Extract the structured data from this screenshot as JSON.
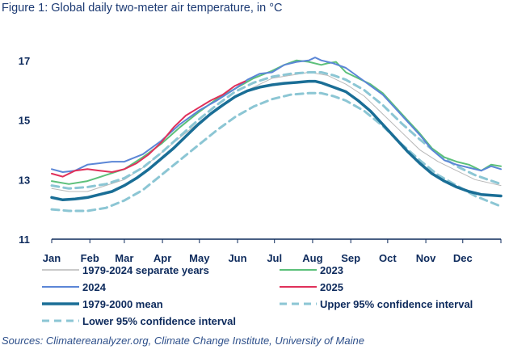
{
  "chart_data": {
    "type": "line",
    "title": "Figure 1: Global daily two-meter air temperature, in °C",
    "source": "Sources: Climatereanalyzer.org, Climate Change Institute, University of Maine",
    "ylim": [
      11,
      17.4
    ],
    "yticks": [
      11,
      13,
      15,
      17
    ],
    "xlim": [
      1,
      366
    ],
    "x_tick_labels": [
      "Jan",
      "Feb",
      "Mar",
      "Apr",
      "May",
      "Jun",
      "Jul",
      "Aug",
      "Sep",
      "Oct",
      "Nov",
      "Dec"
    ],
    "x_tick_days": [
      1,
      32,
      60,
      91,
      121,
      152,
      182,
      213,
      244,
      274,
      305,
      335
    ],
    "grid": false,
    "legend_position": "bottom",
    "colors": {
      "separate_years": "#b8b8b8",
      "y2023": "#5cc07a",
      "y2024": "#5b86d6",
      "y2025": "#e0305a",
      "mean": "#1a6e96",
      "ci": "#8cc6d4",
      "axis": "#0d2a5c"
    },
    "series": [
      {
        "name": "1979-2024 separate years",
        "x": [
          1,
          15,
          30,
          45,
          60,
          75,
          90,
          105,
          120,
          135,
          150,
          165,
          180,
          195,
          210,
          225,
          240,
          255,
          270,
          285,
          300,
          315,
          330,
          345,
          366
        ],
        "y": [
          12.7,
          12.6,
          12.6,
          12.8,
          13.0,
          13.4,
          13.9,
          14.4,
          14.9,
          15.4,
          15.8,
          16.1,
          16.4,
          16.5,
          16.6,
          16.5,
          16.2,
          15.8,
          15.2,
          14.6,
          14.0,
          13.6,
          13.3,
          13.0,
          12.8
        ]
      },
      {
        "name": "2023",
        "x": [
          1,
          15,
          30,
          45,
          60,
          75,
          90,
          105,
          120,
          135,
          150,
          165,
          180,
          190,
          200,
          210,
          220,
          225,
          232,
          240,
          250,
          260,
          270,
          280,
          290,
          300,
          310,
          320,
          330,
          340,
          350,
          358,
          366
        ],
        "y": [
          12.95,
          12.85,
          12.95,
          13.15,
          13.35,
          13.75,
          14.2,
          14.75,
          15.25,
          15.7,
          16.05,
          16.4,
          16.65,
          16.85,
          17.0,
          16.95,
          16.85,
          16.9,
          16.95,
          16.6,
          16.4,
          16.2,
          15.9,
          15.45,
          15.0,
          14.55,
          14.05,
          13.75,
          13.6,
          13.5,
          13.3,
          13.5,
          13.45
        ]
      },
      {
        "name": "2024",
        "x": [
          1,
          10,
          20,
          30,
          40,
          50,
          60,
          75,
          90,
          105,
          120,
          135,
          150,
          160,
          170,
          180,
          190,
          200,
          210,
          215,
          220,
          230,
          240,
          250,
          260,
          270,
          280,
          290,
          300,
          310,
          320,
          330,
          340,
          350,
          358,
          366
        ],
        "y": [
          13.35,
          13.25,
          13.3,
          13.5,
          13.55,
          13.6,
          13.6,
          13.85,
          14.3,
          14.85,
          15.3,
          15.65,
          16.05,
          16.35,
          16.55,
          16.6,
          16.85,
          16.95,
          17.0,
          17.1,
          17.0,
          16.9,
          16.75,
          16.45,
          16.15,
          15.85,
          15.4,
          14.95,
          14.5,
          14.0,
          13.65,
          13.5,
          13.4,
          13.3,
          13.45,
          13.35
        ]
      },
      {
        "name": "2025",
        "x": [
          1,
          10,
          20,
          30,
          40,
          50,
          60,
          70,
          80,
          90,
          100,
          110,
          120,
          130,
          140,
          150,
          158
        ],
        "y": [
          13.2,
          13.1,
          13.3,
          13.35,
          13.3,
          13.25,
          13.35,
          13.55,
          13.85,
          14.25,
          14.75,
          15.15,
          15.4,
          15.65,
          15.85,
          16.15,
          16.3
        ]
      },
      {
        "name": "1979-2000 mean",
        "x": [
          1,
          10,
          20,
          30,
          40,
          50,
          60,
          70,
          80,
          90,
          100,
          110,
          120,
          130,
          140,
          150,
          160,
          170,
          180,
          190,
          200,
          210,
          215,
          220,
          230,
          240,
          250,
          260,
          270,
          280,
          290,
          300,
          310,
          320,
          330,
          340,
          350,
          366
        ],
        "y": [
          12.4,
          12.32,
          12.35,
          12.4,
          12.5,
          12.6,
          12.8,
          13.05,
          13.35,
          13.7,
          14.05,
          14.45,
          14.85,
          15.2,
          15.5,
          15.78,
          15.98,
          16.1,
          16.18,
          16.23,
          16.26,
          16.3,
          16.3,
          16.25,
          16.1,
          15.95,
          15.65,
          15.3,
          14.85,
          14.4,
          13.95,
          13.55,
          13.2,
          12.95,
          12.75,
          12.6,
          12.5,
          12.45
        ]
      },
      {
        "name": "Upper 95% confidence interval",
        "x": [
          1,
          15,
          30,
          45,
          60,
          75,
          90,
          105,
          120,
          135,
          150,
          165,
          180,
          195,
          210,
          220,
          230,
          240,
          255,
          270,
          285,
          300,
          315,
          330,
          345,
          366
        ],
        "y": [
          12.8,
          12.7,
          12.75,
          12.85,
          13.05,
          13.4,
          13.9,
          14.45,
          15.0,
          15.5,
          15.95,
          16.25,
          16.45,
          16.55,
          16.6,
          16.6,
          16.5,
          16.35,
          16.0,
          15.5,
          14.9,
          14.35,
          13.85,
          13.45,
          13.15,
          12.85
        ]
      },
      {
        "name": "Lower 95% confidence interval",
        "x": [
          1,
          15,
          30,
          45,
          60,
          75,
          90,
          105,
          120,
          135,
          150,
          165,
          180,
          195,
          210,
          220,
          230,
          240,
          255,
          270,
          285,
          300,
          315,
          330,
          345,
          366
        ],
        "y": [
          12.0,
          11.95,
          11.95,
          12.05,
          12.3,
          12.65,
          13.15,
          13.65,
          14.15,
          14.65,
          15.1,
          15.45,
          15.7,
          15.85,
          15.9,
          15.9,
          15.8,
          15.65,
          15.3,
          14.8,
          14.2,
          13.65,
          13.15,
          12.8,
          12.45,
          12.1
        ]
      }
    ]
  }
}
